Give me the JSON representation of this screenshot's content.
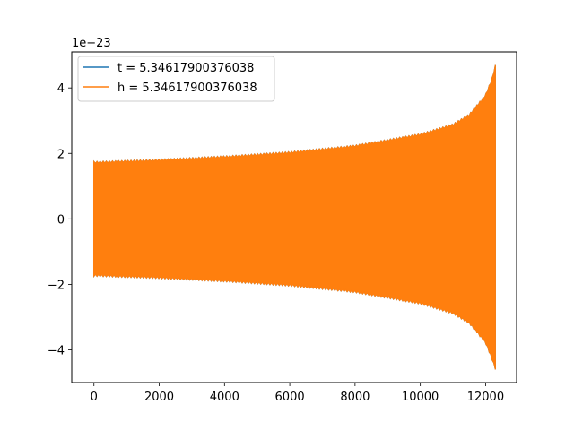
{
  "chart_data": {
    "type": "line",
    "offset_text": "1e−23",
    "x_ticks": [
      0,
      2000,
      4000,
      6000,
      8000,
      10000,
      12000
    ],
    "x_tick_labels": [
      "0",
      "2000",
      "4000",
      "6000",
      "8000",
      "10000",
      "12000"
    ],
    "y_ticks": [
      -4,
      -2,
      0,
      2,
      4
    ],
    "y_tick_labels": [
      "−4",
      "−2",
      "0",
      "2",
      "4"
    ],
    "xlim": [
      -680,
      12950
    ],
    "ylim": [
      -5,
      5.1
    ],
    "legend_position": "upper left",
    "grid": false,
    "series": [
      {
        "name": "t = 5.34617900376038",
        "color": "#1f77b4",
        "style": "oscillating envelope (hidden beneath h)",
        "envelope_x": [
          0,
          2000,
          4000,
          6000,
          8000,
          10000,
          11000,
          11500,
          12000,
          12200,
          12300
        ],
        "envelope_upper": [
          1.75,
          1.82,
          1.92,
          2.05,
          2.25,
          2.6,
          2.9,
          3.2,
          3.8,
          4.3,
          4.7
        ],
        "envelope_lower": [
          -1.75,
          -1.82,
          -1.92,
          -2.05,
          -2.25,
          -2.6,
          -2.9,
          -3.2,
          -3.8,
          -4.3,
          -4.6
        ]
      },
      {
        "name": "h = 5.34617900376038",
        "color": "#ff7f0e",
        "style": "oscillating envelope",
        "envelope_x": [
          0,
          2000,
          4000,
          6000,
          8000,
          10000,
          11000,
          11500,
          12000,
          12200,
          12300
        ],
        "envelope_upper": [
          1.75,
          1.82,
          1.92,
          2.05,
          2.25,
          2.6,
          2.9,
          3.2,
          3.8,
          4.3,
          4.7
        ],
        "envelope_lower": [
          -1.75,
          -1.82,
          -1.92,
          -2.05,
          -2.25,
          -2.6,
          -2.9,
          -3.2,
          -3.8,
          -4.3,
          -4.6
        ]
      }
    ]
  }
}
